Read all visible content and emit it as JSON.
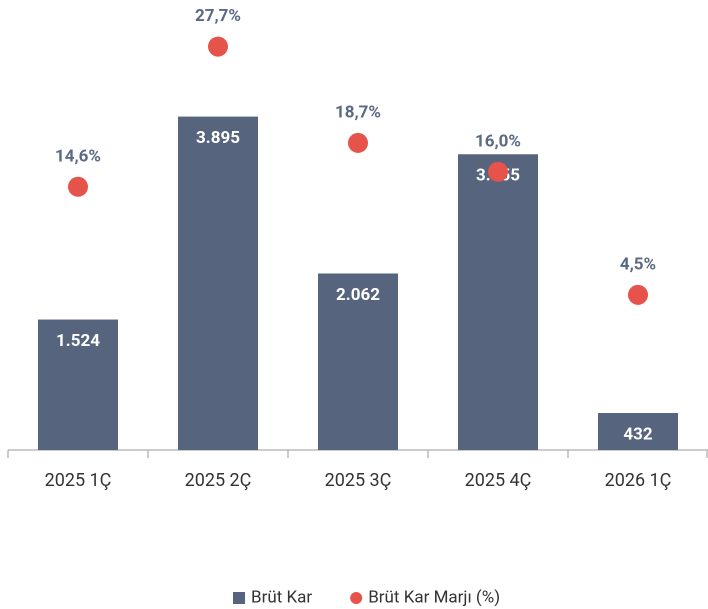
{
  "chart_data": {
    "type": "bar",
    "categories": [
      "2025 1Ç",
      "2025 2Ç",
      "2025 3Ç",
      "2025 4Ç",
      "2026 1Ç"
    ],
    "series": [
      {
        "name": "Brüt Kar",
        "type": "bar",
        "color": "#56647d",
        "values": [
          1524,
          3895,
          2062,
          3455,
          432
        ],
        "value_labels": [
          "1.524",
          "3.895",
          "2.062",
          "3.455",
          "432"
        ]
      },
      {
        "name": "Brüt Kar Marjı (%)",
        "type": "scatter",
        "axis": "y2",
        "color": "#e5534b",
        "values": [
          14.6,
          27.7,
          18.7,
          16.0,
          4.5
        ],
        "value_labels": [
          "14,6%",
          "27,7%",
          "18,7%",
          "16,0%",
          "4,5%"
        ]
      }
    ],
    "ylim": [
      0,
      5000
    ],
    "y2lim": [
      -10,
      30
    ],
    "legend": "bottom"
  }
}
